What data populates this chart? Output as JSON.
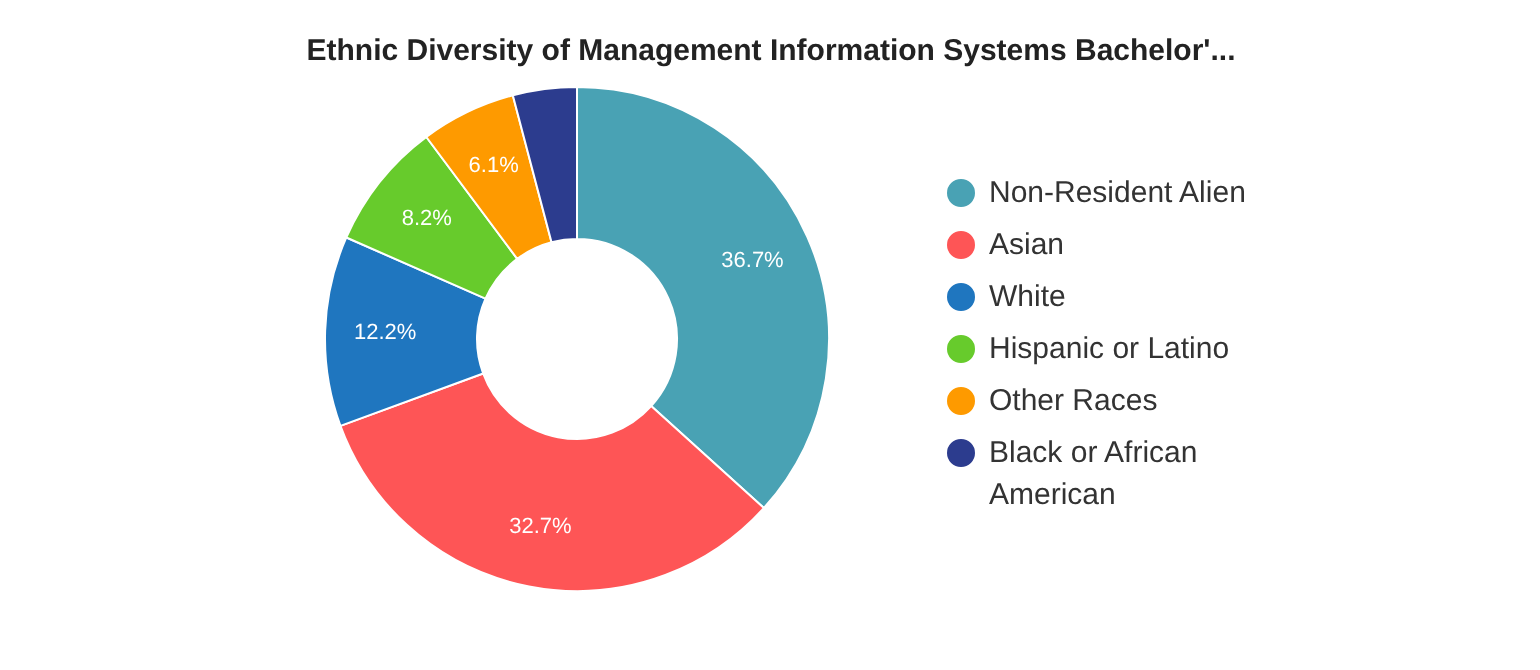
{
  "chart_data": {
    "type": "donut",
    "title": "Ethnic Diversity of Management Information Systems Bachelor'...",
    "categories": [
      "Non-Resident Alien",
      "Asian",
      "White",
      "Hispanic or Latino",
      "Other Races",
      "Black or African American"
    ],
    "values": [
      36.7,
      32.7,
      12.2,
      8.2,
      6.1,
      4.1
    ],
    "colors": [
      "#49a2b4",
      "#fe5556",
      "#1f76bf",
      "#67cb2c",
      "#fe9a00",
      "#2c3c8e"
    ],
    "value_labels": [
      "36.7%",
      "32.7%",
      "12.2%",
      "8.2%",
      "6.1%",
      null
    ],
    "legend": "right"
  }
}
